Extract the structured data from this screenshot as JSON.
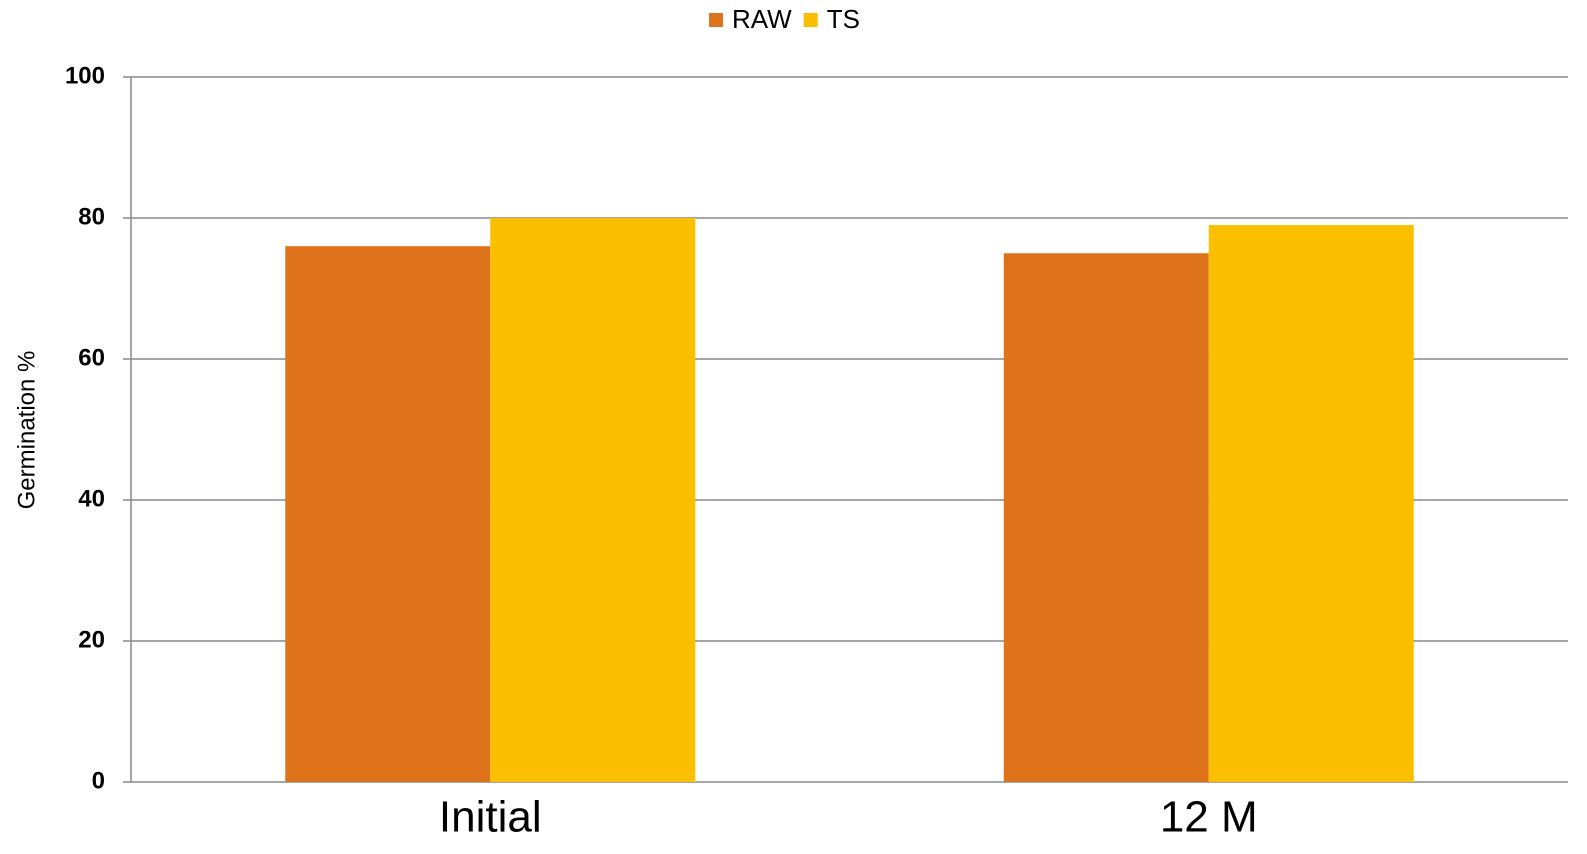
{
  "chart_data": {
    "type": "bar",
    "categories": [
      "Initial",
      "12 M"
    ],
    "series": [
      {
        "name": "RAW",
        "color": "#de731c",
        "values": [
          76,
          75
        ]
      },
      {
        "name": "TS",
        "color": "#fbbf00",
        "values": [
          80,
          79
        ]
      }
    ],
    "y_label": "Germination %",
    "ylim": [
      0,
      100
    ],
    "yticks": [
      0,
      20,
      40,
      60,
      80,
      100
    ],
    "grid": true,
    "legend": "top"
  }
}
